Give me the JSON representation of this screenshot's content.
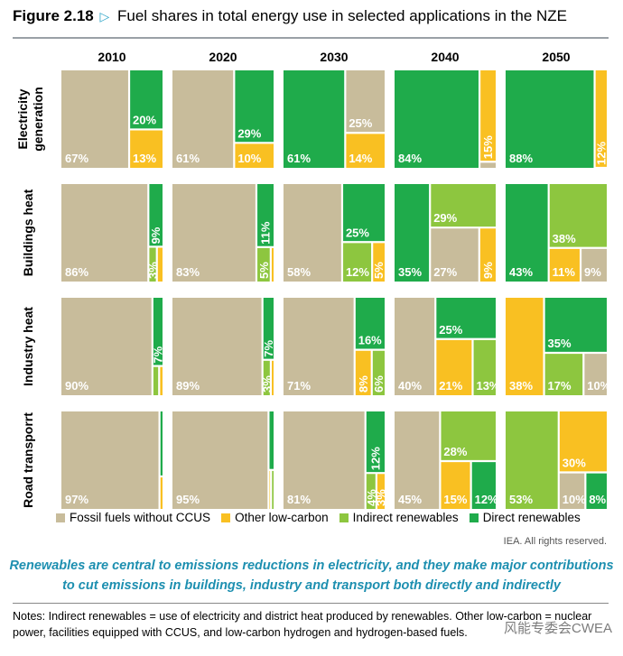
{
  "figure": {
    "number": "Figure 2.18",
    "title": "Fuel shares in total energy use in selected applications in the NZE"
  },
  "colors": {
    "fossil": "#c8bc9b",
    "other_low_carbon": "#f9c022",
    "indirect": "#8dc63f",
    "direct": "#1fab4b",
    "label": "#ffffff"
  },
  "chart_data": {
    "type": "treemap",
    "title": "Fuel shares in total energy use in selected applications in the NZE",
    "years": [
      "2010",
      "2020",
      "2030",
      "2040",
      "2050"
    ],
    "categories": [
      "Fossil fuels without CCUS",
      "Other low-carbon",
      "Indirect renewables",
      "Direct renewables"
    ],
    "rows": [
      {
        "label_line1": "Electricity",
        "label_line2": "generation",
        "cells": [
          {
            "year": "2010",
            "fossil": 67,
            "other": 13,
            "indirect": 0,
            "direct": 20
          },
          {
            "year": "2020",
            "fossil": 61,
            "other": 10,
            "indirect": 0,
            "direct": 29
          },
          {
            "year": "2030",
            "fossil": 25,
            "other": 14,
            "indirect": 0,
            "direct": 61
          },
          {
            "year": "2040",
            "fossil": 1,
            "other": 15,
            "indirect": 0,
            "direct": 84
          },
          {
            "year": "2050",
            "fossil": 0,
            "other": 12,
            "indirect": 0,
            "direct": 88
          }
        ]
      },
      {
        "label_line1": "Buildings heat",
        "label_line2": "",
        "cells": [
          {
            "year": "2010",
            "fossil": 86,
            "other": 2,
            "indirect": 3,
            "direct": 9
          },
          {
            "year": "2020",
            "fossil": 83,
            "other": 1,
            "indirect": 5,
            "direct": 11
          },
          {
            "year": "2030",
            "fossil": 58,
            "other": 5,
            "indirect": 12,
            "direct": 25
          },
          {
            "year": "2040",
            "fossil": 27,
            "other": 9,
            "indirect": 29,
            "direct": 35
          },
          {
            "year": "2050",
            "fossil": 9,
            "other": 11,
            "indirect": 38,
            "direct": 43
          }
        ]
      },
      {
        "label_line1": "Industry heat",
        "label_line2": "",
        "cells": [
          {
            "year": "2010",
            "fossil": 90,
            "other": 1,
            "indirect": 2,
            "direct": 7
          },
          {
            "year": "2020",
            "fossil": 89,
            "other": 1,
            "indirect": 3,
            "direct": 7
          },
          {
            "year": "2030",
            "fossil": 71,
            "other": 8,
            "indirect": 6,
            "direct": 16
          },
          {
            "year": "2040",
            "fossil": 40,
            "other": 21,
            "indirect": 13,
            "direct": 25
          },
          {
            "year": "2050",
            "fossil": 10,
            "other": 38,
            "indirect": 17,
            "direct": 35
          }
        ]
      },
      {
        "label_line1": "Road transporrt",
        "label_line2": "",
        "cells": [
          {
            "year": "2010",
            "fossil": 97,
            "other": 1,
            "indirect": 0,
            "direct": 2
          },
          {
            "year": "2020",
            "fossil": 95,
            "other": 1,
            "indirect": 1,
            "direct": 3
          },
          {
            "year": "2030",
            "fossil": 81,
            "other": 3,
            "indirect": 4,
            "direct": 12
          },
          {
            "year": "2040",
            "fossil": 45,
            "other": 15,
            "indirect": 28,
            "direct": 12
          },
          {
            "year": "2050",
            "fossil": 10,
            "other": 30,
            "indirect": 53,
            "direct": 8
          }
        ]
      }
    ]
  },
  "legend": {
    "fossil": "Fossil fuels without CCUS",
    "other": "Other low-carbon",
    "indirect": "Indirect renewables",
    "direct": "Direct renewables"
  },
  "source": "IEA. All rights reserved.",
  "caption": "Renewables are central to emissions reductions in electricity, and they make major contributions to cut emissions in buildings, industry and transport both directly and indirectly",
  "notes": "Notes: Indirect renewables = use of electricity and district heat produced by renewables. Other low-carbon = nuclear power, facilities equipped with CCUS, and low-carbon hydrogen and hydrogen-based fuels.",
  "watermark": "风能专委会CWEA"
}
